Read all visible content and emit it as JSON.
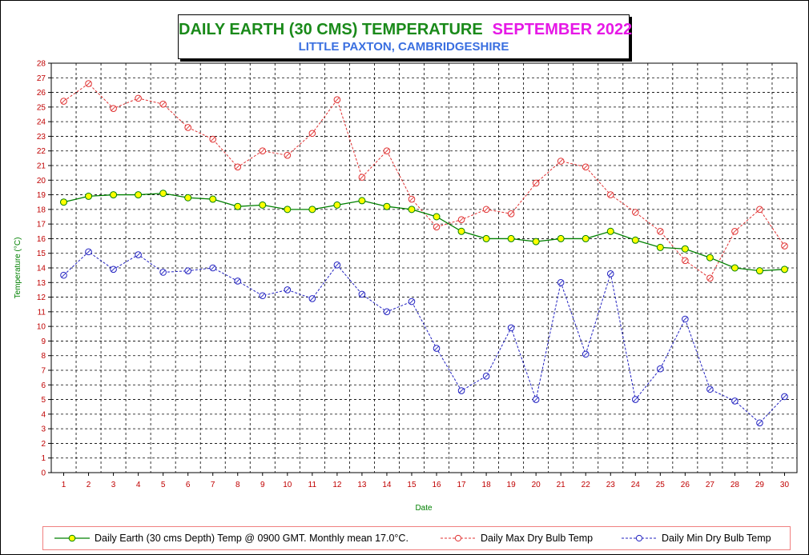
{
  "title": {
    "main": "DAILY EARTH (30 CMS) TEMPERATURE",
    "month": "SEPTEMBER 2022",
    "subtitle": "LITTLE PAXTON, CAMBRIDGESHIRE"
  },
  "colors": {
    "earth": "#008000",
    "earth_marker": "#ffff00",
    "max": "#e03030",
    "min": "#2020c0",
    "grid": "#000000",
    "axis_label": "#008000",
    "tick_label": "#c00000",
    "title_green": "#1a8a1a",
    "title_magenta": "#e619e6",
    "subtitle_blue": "#3a6fe0"
  },
  "chart_data": {
    "type": "line",
    "xlabel": "Date",
    "ylabel": "Temperature (°C)",
    "x": [
      1,
      2,
      3,
      4,
      5,
      6,
      7,
      8,
      9,
      10,
      11,
      12,
      13,
      14,
      15,
      16,
      17,
      18,
      19,
      20,
      21,
      22,
      23,
      24,
      25,
      26,
      27,
      28,
      29,
      30
    ],
    "ylim": [
      0,
      28
    ],
    "yticks": [
      0,
      1,
      2,
      3,
      4,
      5,
      6,
      7,
      8,
      9,
      10,
      11,
      12,
      13,
      14,
      15,
      16,
      17,
      18,
      19,
      20,
      21,
      22,
      23,
      24,
      25,
      26,
      27,
      28
    ],
    "grid": true,
    "legend_position": "bottom",
    "series": [
      {
        "name": "Daily Earth (30 cms Depth) Temp @ 0900 GMT. Monthly mean 17.0°C.",
        "style": "solid-filled",
        "values": [
          18.5,
          18.9,
          19.0,
          19.0,
          19.1,
          18.8,
          18.7,
          18.2,
          18.3,
          18.0,
          18.0,
          18.3,
          18.6,
          18.2,
          18.0,
          17.5,
          16.5,
          16.0,
          16.0,
          15.8,
          16.0,
          16.0,
          16.5,
          15.9,
          15.4,
          15.3,
          14.7,
          14.0,
          13.8,
          13.9
        ]
      },
      {
        "name": "Daily Max Dry Bulb Temp",
        "style": "dashed-open",
        "values": [
          25.4,
          26.6,
          24.9,
          25.6,
          25.2,
          23.6,
          22.8,
          20.9,
          22.0,
          21.7,
          23.2,
          25.5,
          20.2,
          22.0,
          18.7,
          16.8,
          17.3,
          18.0,
          17.7,
          19.8,
          21.3,
          20.9,
          19.0,
          17.8,
          16.5,
          14.5,
          13.3,
          16.5,
          18.0,
          15.5
        ]
      },
      {
        "name": "Daily Min Dry Bulb Temp",
        "style": "dashed-open",
        "values": [
          13.5,
          15.1,
          13.9,
          14.9,
          13.7,
          13.8,
          14.0,
          13.1,
          12.1,
          12.5,
          11.9,
          14.2,
          12.2,
          11.0,
          11.7,
          8.5,
          5.6,
          6.6,
          9.9,
          5.0,
          13.0,
          8.1,
          13.6,
          5.0,
          7.1,
          10.5,
          5.7,
          4.9,
          3.4,
          5.2
        ]
      }
    ]
  },
  "legend": {
    "earth": "Daily Earth (30 cms Depth) Temp @ 0900 GMT. Monthly mean 17.0°C.",
    "max": "Daily Max Dry Bulb Temp",
    "min": "Daily Min Dry Bulb Temp"
  }
}
